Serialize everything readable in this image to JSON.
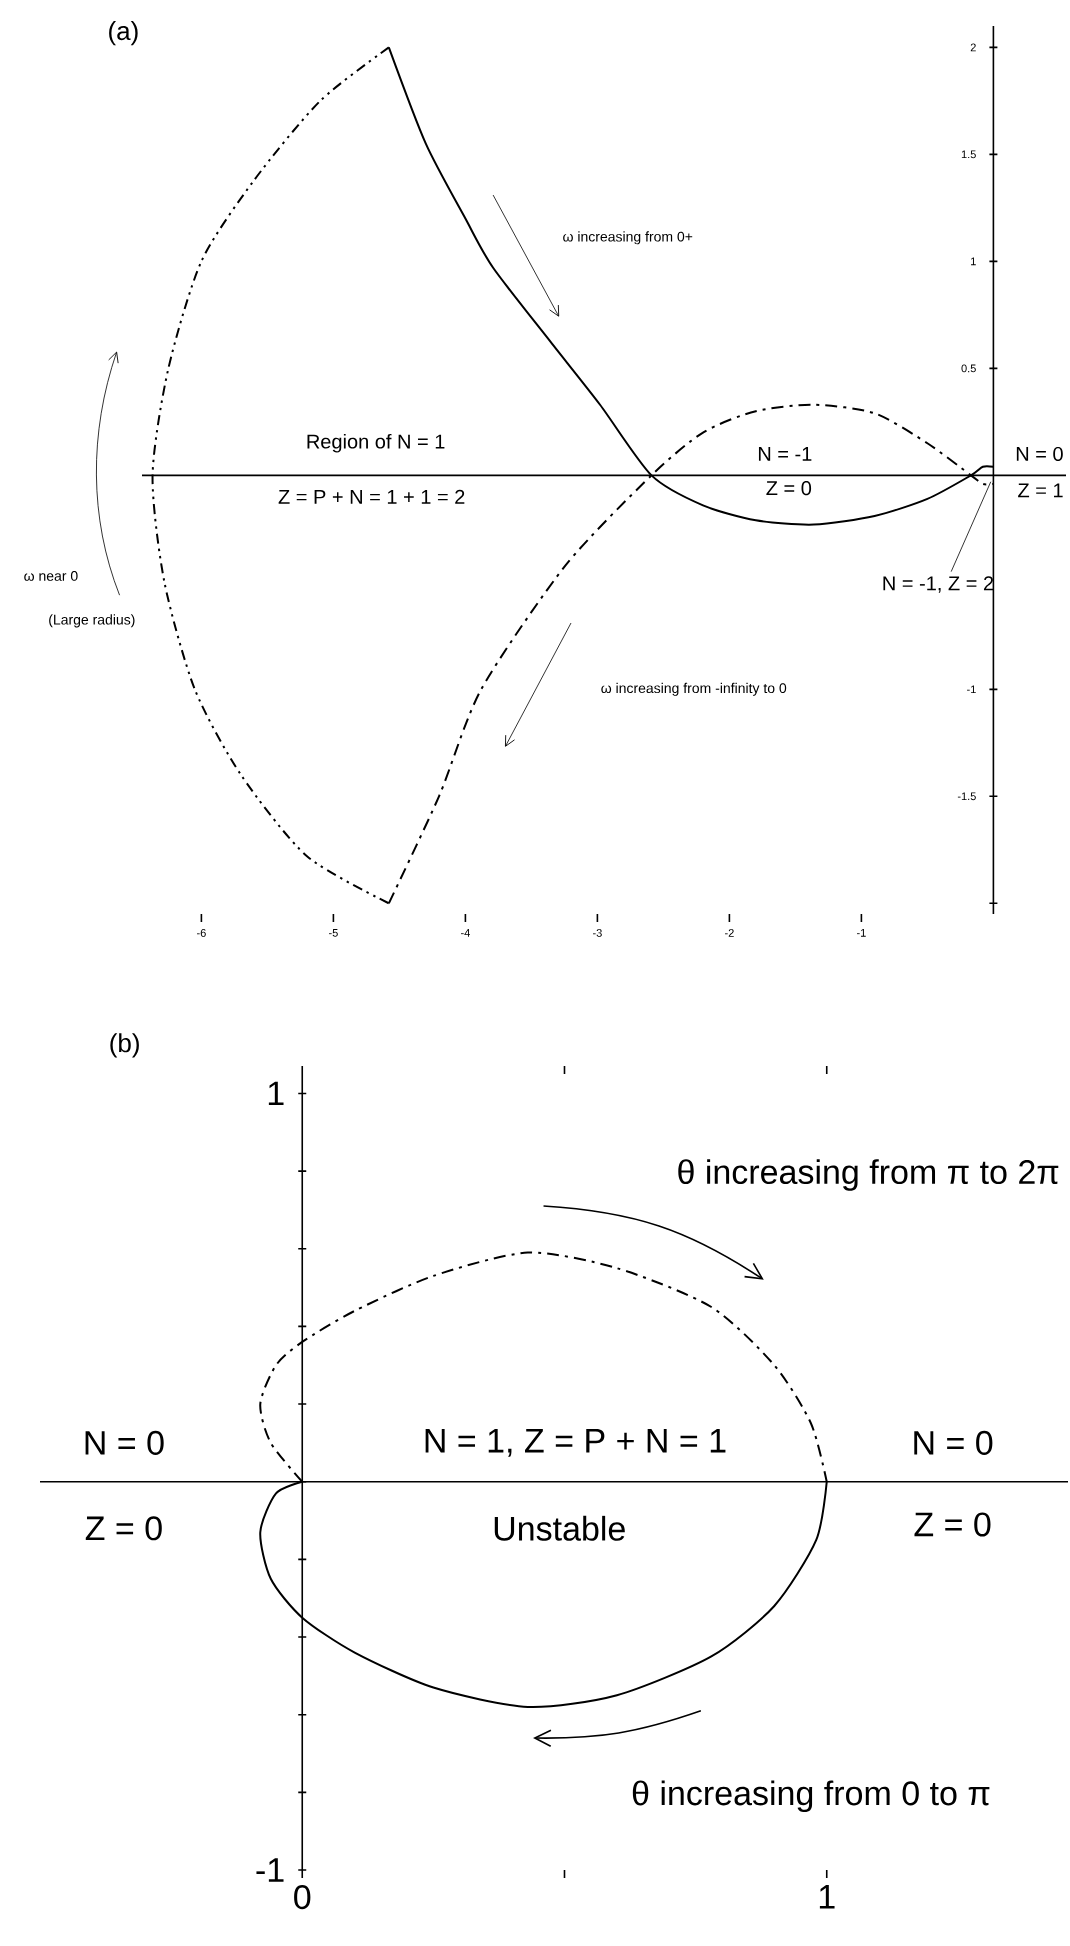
{
  "chart_data": [
    {
      "type": "line",
      "title": "(a)",
      "xlim": [
        -6.45,
        0.55
      ],
      "ylim": [
        -2.05,
        2.1
      ],
      "xticks": [
        -6,
        -5,
        -4,
        -3,
        -2,
        -1
      ],
      "yticks": [
        {
          "value": -2,
          "label": null
        },
        -1.5,
        -1,
        0.5,
        1,
        1.5,
        2
      ],
      "marker": "none",
      "ref_lines": [
        {
          "axis": "y",
          "value": 0
        }
      ],
      "series": [
        {
          "color": "#000000",
          "line_style": "solid",
          "x": [
            -4.58,
            -4.3,
            -4.0,
            -3.79,
            -3.35,
            -2.98,
            -2.59,
            -2.2,
            -1.8,
            -1.36,
            -0.9,
            -0.5,
            -0.17,
            -0.08,
            0
          ],
          "values": [
            2.0,
            1.55,
            1.2,
            0.97,
            0.62,
            0.33,
            0,
            -0.14,
            -0.21,
            -0.23,
            -0.19,
            -0.11,
            0,
            0.04,
            0.04
          ]
        },
        {
          "color": "#000000",
          "line_style": "dashdotted",
          "x": [
            -4.58,
            -4.2,
            -3.88,
            -3.24,
            -2.59,
            -2.2,
            -1.8,
            -1.36,
            -0.9,
            -0.5,
            -0.17,
            -0.08,
            0
          ],
          "values": [
            -2.0,
            -1.5,
            -1.0,
            -0.42,
            0,
            0.2,
            0.3,
            0.33,
            0.29,
            0.15,
            0,
            -0.04,
            -0.04
          ]
        },
        {
          "color": "#000000",
          "line_style": "dashdotdotted",
          "x": [
            -4.58,
            -5.1,
            -5.6,
            -6.0,
            -6.25,
            -6.37,
            -6.28,
            -6.05,
            -5.7,
            -5.2,
            -4.58
          ],
          "values": [
            2.0,
            1.75,
            1.38,
            1.0,
            0.5,
            0,
            -0.5,
            -1.0,
            -1.4,
            -1.78,
            -2.0
          ]
        }
      ],
      "annotations": [
        "ω increasing from 0+",
        "Region of N = 1",
        "Z = P + N = 1 + 1  = 2",
        "N = -1",
        "Z = 0",
        "N = 0",
        "Z = 1",
        {
          "text": "N = -1, Z = 2",
          "x": -0.02,
          "y": -0.03
        },
        "ω increasing from -infinity to 0",
        "ω near 0",
        "(Large radius)"
      ]
    },
    {
      "type": "line",
      "title": "(b)",
      "xlim": [
        -0.5,
        1.46
      ],
      "ylim": [
        -1,
        1.05
      ],
      "xticks": [
        0,
        {
          "value": 0.5,
          "label": null
        },
        1
      ],
      "yticks": [
        -1,
        {
          "value": -0.8,
          "label": null
        },
        {
          "value": -0.6,
          "label": null
        },
        {
          "value": -0.4,
          "label": null
        },
        {
          "value": -0.2,
          "label": null
        },
        {
          "value": 0,
          "label": null
        },
        {
          "value": 0.2,
          "label": null
        },
        {
          "value": 0.4,
          "label": null
        },
        {
          "value": 0.6,
          "label": null
        },
        {
          "value": 0.8,
          "label": null
        },
        1
      ],
      "marker": "none",
      "ref_lines": [
        {
          "axis": "y",
          "value": 0
        }
      ],
      "series": [
        {
          "color": "#000000",
          "line_style": "solid",
          "x": [
            1,
            0.98,
            0.9,
            0.78,
            0.6,
            0.43,
            0.25,
            0.1,
            0,
            -0.06,
            -0.08,
            -0.05,
            0
          ],
          "values": [
            0,
            -0.15,
            -0.32,
            -0.45,
            -0.55,
            -0.58,
            -0.53,
            -0.44,
            -0.35,
            -0.25,
            -0.13,
            -0.03,
            0
          ]
        },
        {
          "color": "#000000",
          "line_style": "dashdotted",
          "x": [
            0,
            -0.06,
            -0.08,
            -0.05,
            0,
            0.1,
            0.25,
            0.43,
            0.6,
            0.78,
            0.9,
            0.97,
            1
          ],
          "values": [
            0,
            0.1,
            0.2,
            0.3,
            0.36,
            0.44,
            0.53,
            0.59,
            0.55,
            0.45,
            0.3,
            0.15,
            0
          ]
        }
      ],
      "annotations": [
        "θ increasing from π to 2π",
        "N =  1,  Z = P + N = 1",
        "Unstable",
        "N = 0",
        "Z = 0",
        "N = 0",
        "Z = 0",
        "θ increasing from 0 to π"
      ]
    }
  ]
}
